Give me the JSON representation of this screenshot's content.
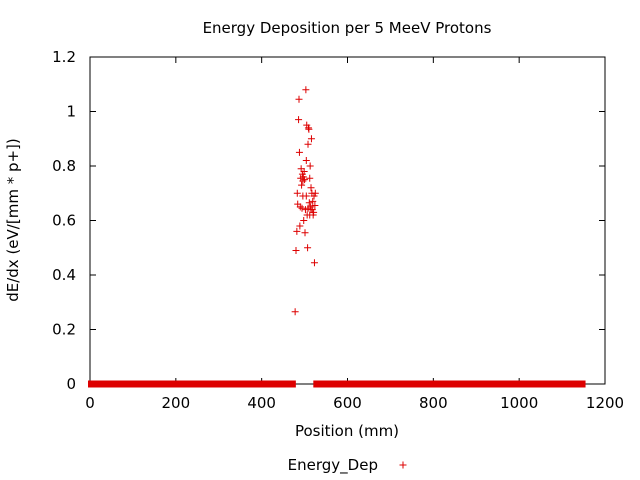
{
  "chart_data": {
    "type": "scatter",
    "title": "Energy Deposition per 5 MeeV Protons",
    "xlabel": "Position (mm)",
    "ylabel": "dE/dx (eV/[mm * p+])",
    "xlim": [
      0,
      1200
    ],
    "ylim": [
      0,
      1.2
    ],
    "x_ticks": [
      0,
      200,
      400,
      600,
      800,
      1000,
      1200
    ],
    "y_ticks": [
      0,
      0.2,
      0.4,
      0.6,
      0.8,
      1,
      1.2
    ],
    "x_tick_labels": [
      "0",
      "200",
      "400",
      "600",
      "800",
      "1000",
      "1200"
    ],
    "y_tick_labels": [
      "0",
      "0.2",
      "0.4",
      "0.6",
      "0.8",
      "1",
      "1.2"
    ],
    "grid": false,
    "legend_position": "bottom-center",
    "marker": "+",
    "color": "#dd0000",
    "series": [
      {
        "name": "Energy_Dep",
        "zero_baseline": {
          "y": 0,
          "x_ranges": [
            [
              0,
              475
            ],
            [
              525,
              1150
            ]
          ],
          "note": "dense run of + markers along y = 0"
        },
        "points": [
          [
            478,
            0.265
          ],
          [
            480,
            0.49
          ],
          [
            482,
            0.56
          ],
          [
            483,
            0.7
          ],
          [
            484,
            0.66
          ],
          [
            486,
            0.97
          ],
          [
            487,
            1.045
          ],
          [
            488,
            0.85
          ],
          [
            489,
            0.58
          ],
          [
            490,
            0.65
          ],
          [
            491,
            0.755
          ],
          [
            492,
            0.79
          ],
          [
            493,
            0.73
          ],
          [
            494,
            0.645
          ],
          [
            495,
            0.77
          ],
          [
            496,
            0.745
          ],
          [
            497,
            0.76
          ],
          [
            498,
            0.6
          ],
          [
            499,
            0.78
          ],
          [
            500,
            0.75
          ],
          [
            501,
            0.555
          ],
          [
            502,
            0.64
          ],
          [
            503,
            1.08
          ],
          [
            504,
            0.82
          ],
          [
            505,
            0.95
          ],
          [
            506,
            0.62
          ],
          [
            507,
            0.5
          ],
          [
            508,
            0.88
          ],
          [
            509,
            0.94
          ],
          [
            510,
            0.935
          ],
          [
            511,
            0.665
          ],
          [
            512,
            0.755
          ],
          [
            513,
            0.8
          ],
          [
            514,
            0.65
          ],
          [
            515,
            0.72
          ],
          [
            516,
            0.9
          ],
          [
            517,
            0.7
          ],
          [
            518,
            0.64
          ],
          [
            519,
            0.67
          ],
          [
            520,
            0.62
          ],
          [
            521,
            0.63
          ],
          [
            522,
            0.69
          ],
          [
            523,
            0.445
          ],
          [
            524,
            0.655
          ],
          [
            525,
            0.7
          ],
          [
            512,
            0.62
          ],
          [
            508,
            0.645
          ],
          [
            504,
            0.69
          ],
          [
            496,
            0.69
          ],
          [
            515,
            0.64
          ]
        ]
      }
    ]
  }
}
